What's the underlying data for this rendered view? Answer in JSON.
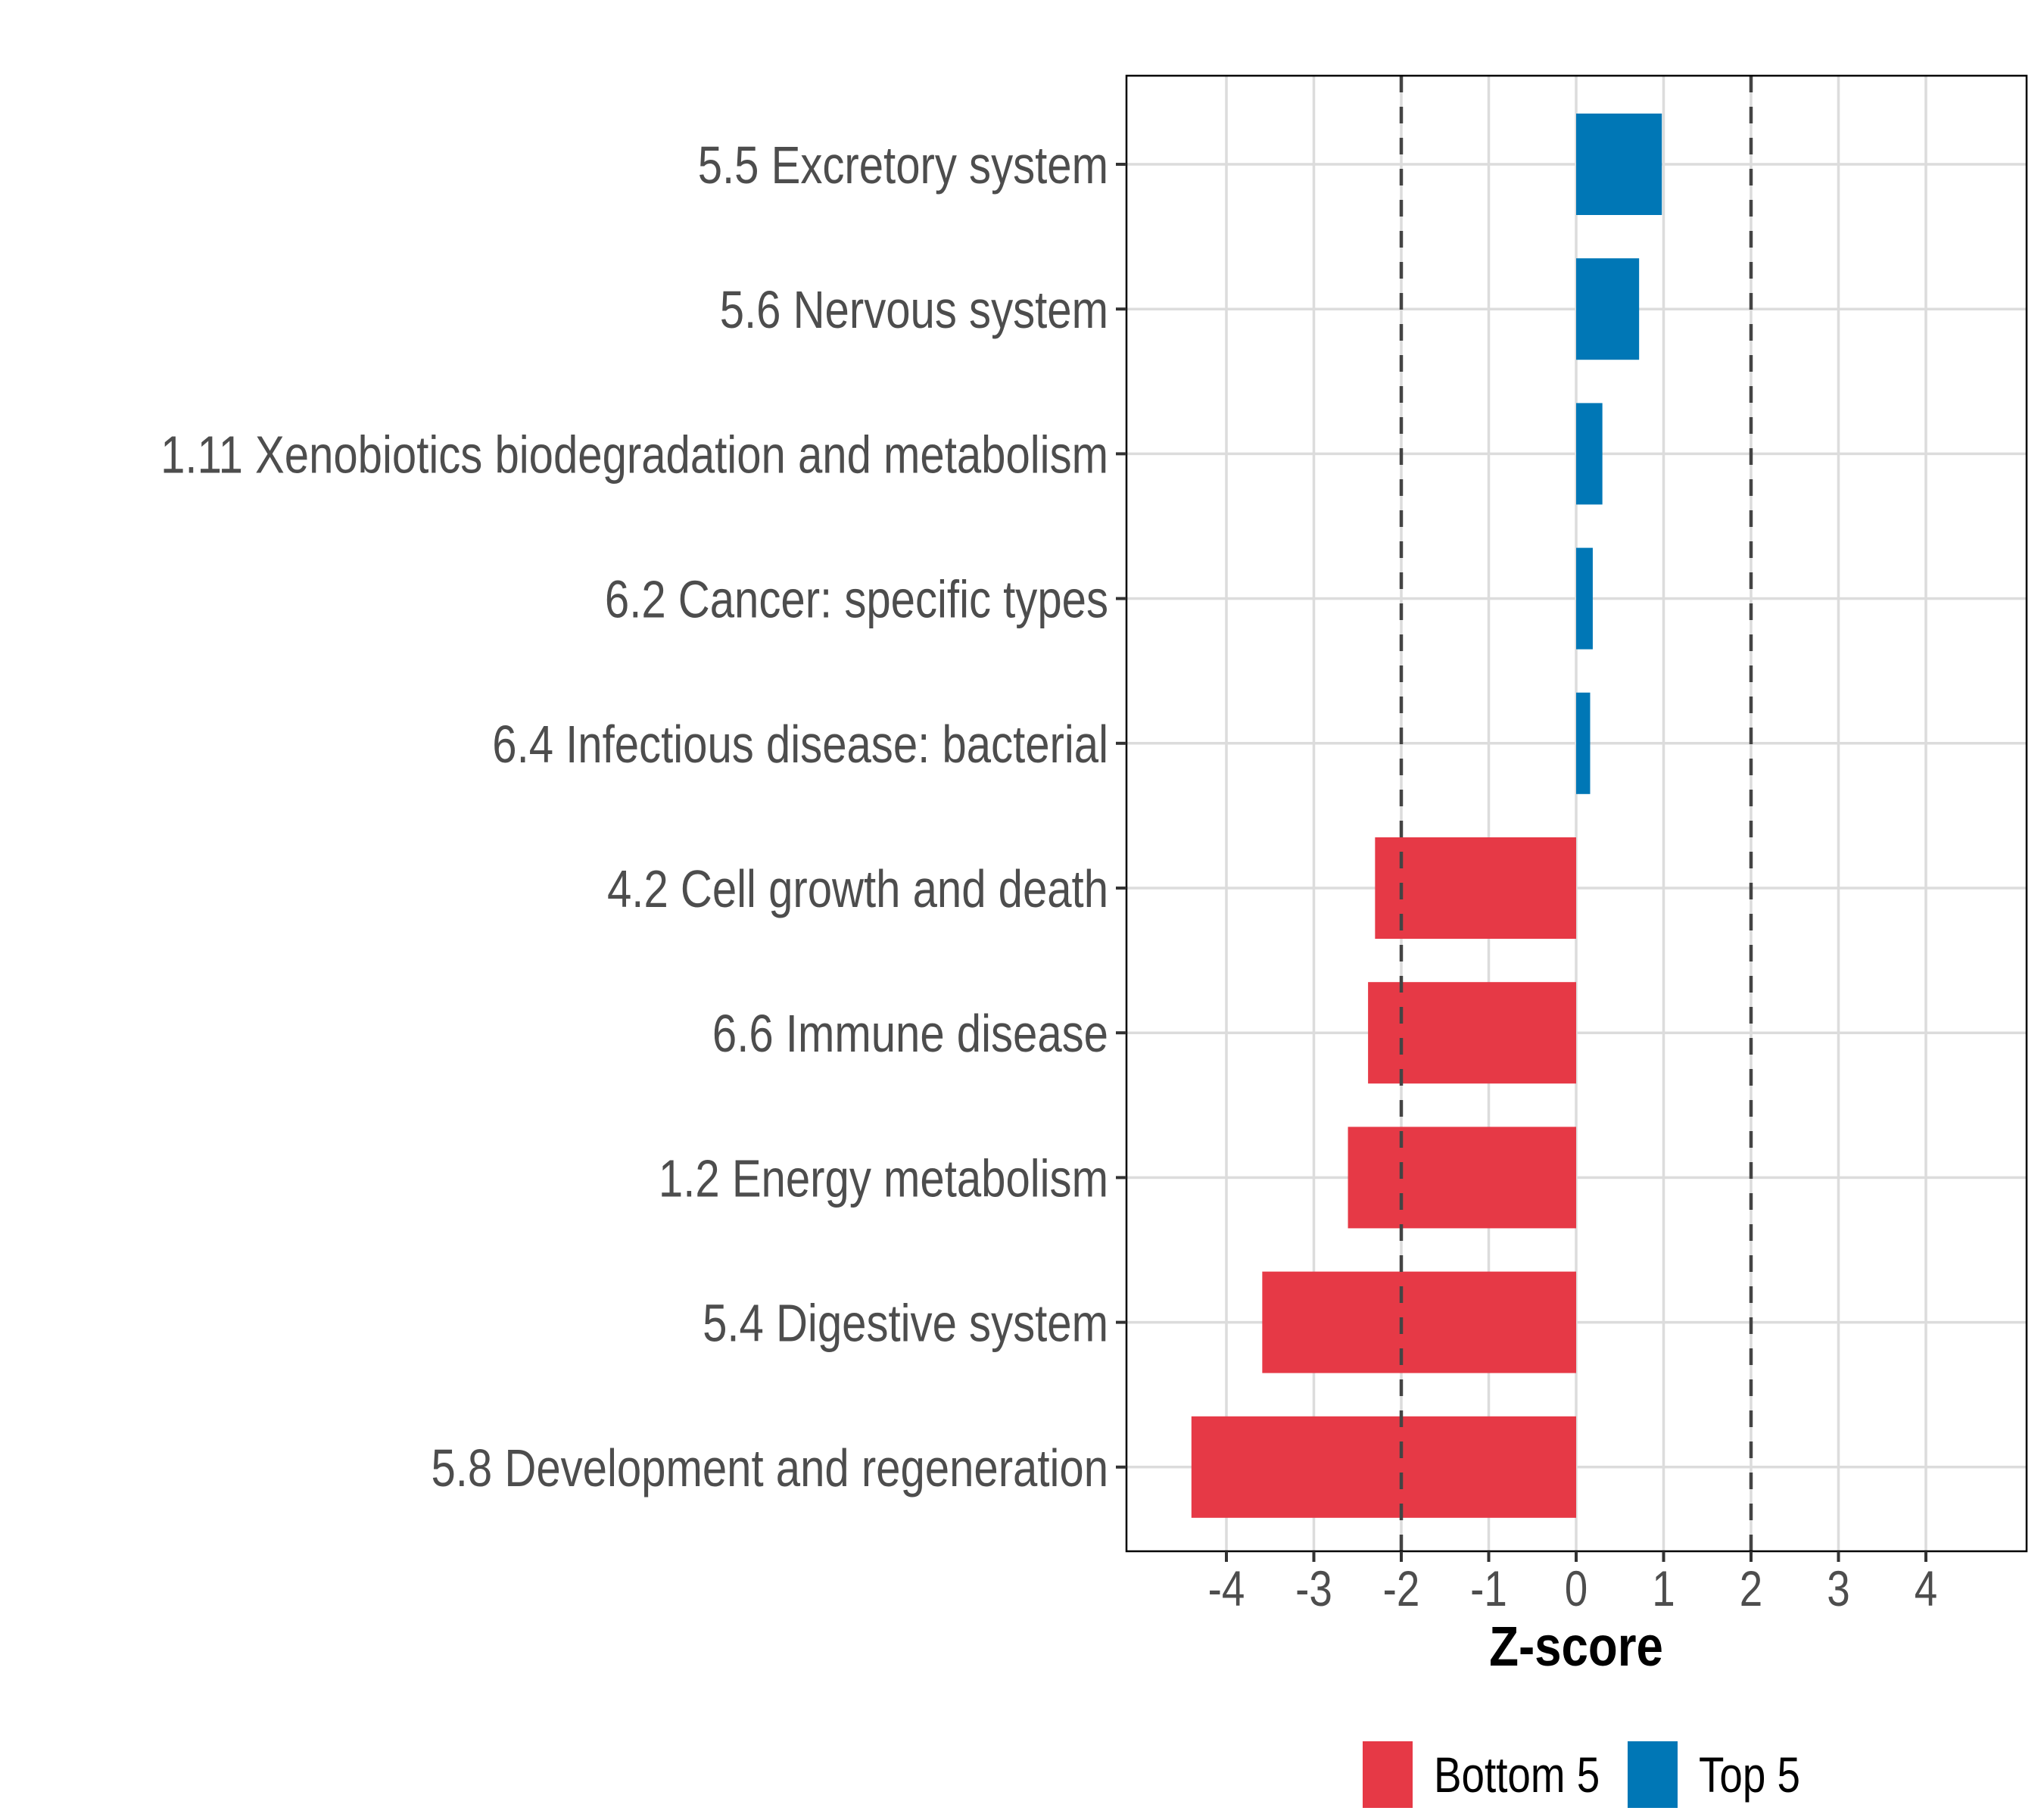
{
  "chart_data": {
    "type": "bar",
    "orientation": "horizontal",
    "title": "",
    "xlabel": "Z-score",
    "ylabel": "",
    "xlim": [
      -5.2,
      5.2
    ],
    "xticks": [
      -4,
      -3,
      -2,
      -1,
      0,
      1,
      2,
      3,
      4
    ],
    "xtick_labels": [
      "-4",
      "-3",
      "-2",
      "-1",
      "0",
      "1",
      "2",
      "3",
      "4"
    ],
    "grid": true,
    "reference_lines": [
      {
        "x": -2,
        "style": "dashed"
      },
      {
        "x": 2,
        "style": "dashed"
      }
    ],
    "categories": [
      "5.5 Excretory system",
      "5.6 Nervous system",
      "1.11 Xenobiotics biodegradation and metabolism",
      "6.2 Cancer: specific types",
      "6.4 Infectious disease: bacterial",
      "4.2 Cell growth and death",
      "6.6 Immune disease",
      "1.2 Energy metabolism",
      "5.4 Digestive system",
      "5.8 Development and regeneration"
    ],
    "values": [
      0.98,
      0.72,
      0.3,
      0.19,
      0.16,
      -2.3,
      -2.38,
      -2.61,
      -3.59,
      -4.4
    ],
    "groups": [
      "Top 5",
      "Top 5",
      "Top 5",
      "Top 5",
      "Top 5",
      "Bottom 5",
      "Bottom 5",
      "Bottom 5",
      "Bottom 5",
      "Bottom 5"
    ],
    "legend": {
      "position": "bottom",
      "entries": [
        {
          "label": "Bottom 5",
          "color": "#e63946"
        },
        {
          "label": "Top 5",
          "color": "#0077b6"
        }
      ]
    },
    "colors": {
      "Bottom 5": "#e63946",
      "Top 5": "#0077b6"
    }
  }
}
